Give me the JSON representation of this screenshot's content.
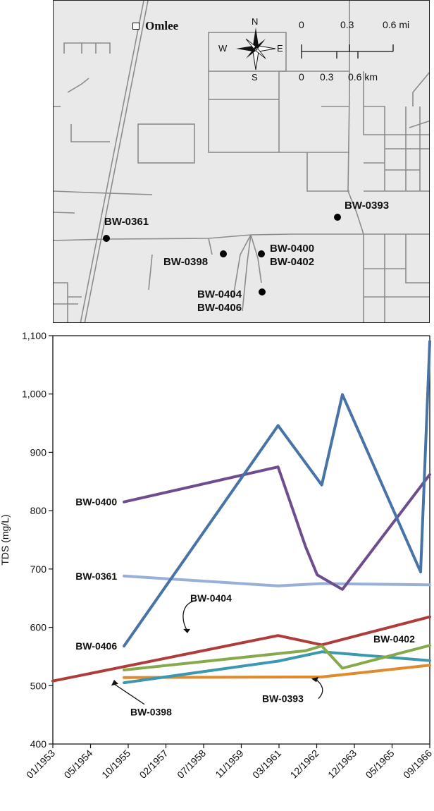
{
  "map": {
    "town": "Omlee",
    "compass": {
      "n": "N",
      "s": "S",
      "e": "E",
      "w": "W"
    },
    "scale": {
      "mi_ticks": [
        "0",
        "0.3",
        "0.6 mi"
      ],
      "km_ticks": [
        "0",
        "0.3",
        "0.6 km"
      ]
    },
    "wells": [
      {
        "id": "w361",
        "label": "BW-0361"
      },
      {
        "id": "w398",
        "label": "BW-0398"
      },
      {
        "id": "w400",
        "label": "BW-0400\nBW-0402"
      },
      {
        "id": "w404",
        "label": "BW-0404\nBW-0406"
      },
      {
        "id": "w393",
        "label": "BW-0393"
      }
    ]
  },
  "chart_data": {
    "type": "line",
    "ylabel": "TDS (mg/L)",
    "ylim": [
      400,
      1100
    ],
    "yticks": [
      400,
      500,
      600,
      700,
      800,
      900,
      1000,
      1100
    ],
    "ytick_labels": [
      "400",
      "500",
      "600",
      "700",
      "800",
      "900",
      "1,000",
      "1,100"
    ],
    "xlim": [
      "1953-01",
      "1966-09"
    ],
    "xticks": [
      "01/1953",
      "05/1954",
      "10/1955",
      "02/1957",
      "07/1958",
      "11/1959",
      "03/1961",
      "12/1962",
      "12/1963",
      "05/1965",
      "09/1966"
    ],
    "series": [
      {
        "name": "BW-0406",
        "color": "#4873a6",
        "x": [
          "1955-08",
          "1961-03",
          "1962-10",
          "1963-07",
          "1966-05",
          "1966-09"
        ],
        "y": [
          568,
          946,
          844,
          999,
          695,
          1090
        ]
      },
      {
        "name": "BW-0400",
        "color": "#6e4d8e",
        "x": [
          "1955-08",
          "1961-03",
          "1962-03",
          "1962-08",
          "1963-07",
          "1966-09"
        ],
        "y": [
          815,
          875,
          738,
          690,
          665,
          862
        ]
      },
      {
        "name": "BW-0361",
        "color": "#98b0d8",
        "x": [
          "1955-08",
          "1961-03",
          "1962-10",
          "1966-09"
        ],
        "y": [
          688,
          671,
          675,
          673
        ]
      },
      {
        "name": "BW-0404",
        "color": "#b03c3a",
        "x": [
          "1953-01",
          "1961-03",
          "1962-10",
          "1966-09"
        ],
        "y": [
          508,
          586,
          570,
          618
        ]
      },
      {
        "name": "BW-0402",
        "color": "#86a94a",
        "x": [
          "1955-08",
          "1962-03",
          "1962-10",
          "1963-07",
          "1966-09"
        ],
        "y": [
          527,
          560,
          568,
          530,
          569
        ]
      },
      {
        "name": "BW-0398",
        "color": "#3c98b0",
        "x": [
          "1955-08",
          "1961-03",
          "1962-10",
          "1966-09"
        ],
        "y": [
          505,
          542,
          558,
          543
        ]
      },
      {
        "name": "BW-0393",
        "color": "#e08a2e",
        "x": [
          "1955-08",
          "1962-10",
          "1966-09"
        ],
        "y": [
          514,
          515,
          535
        ]
      }
    ]
  }
}
